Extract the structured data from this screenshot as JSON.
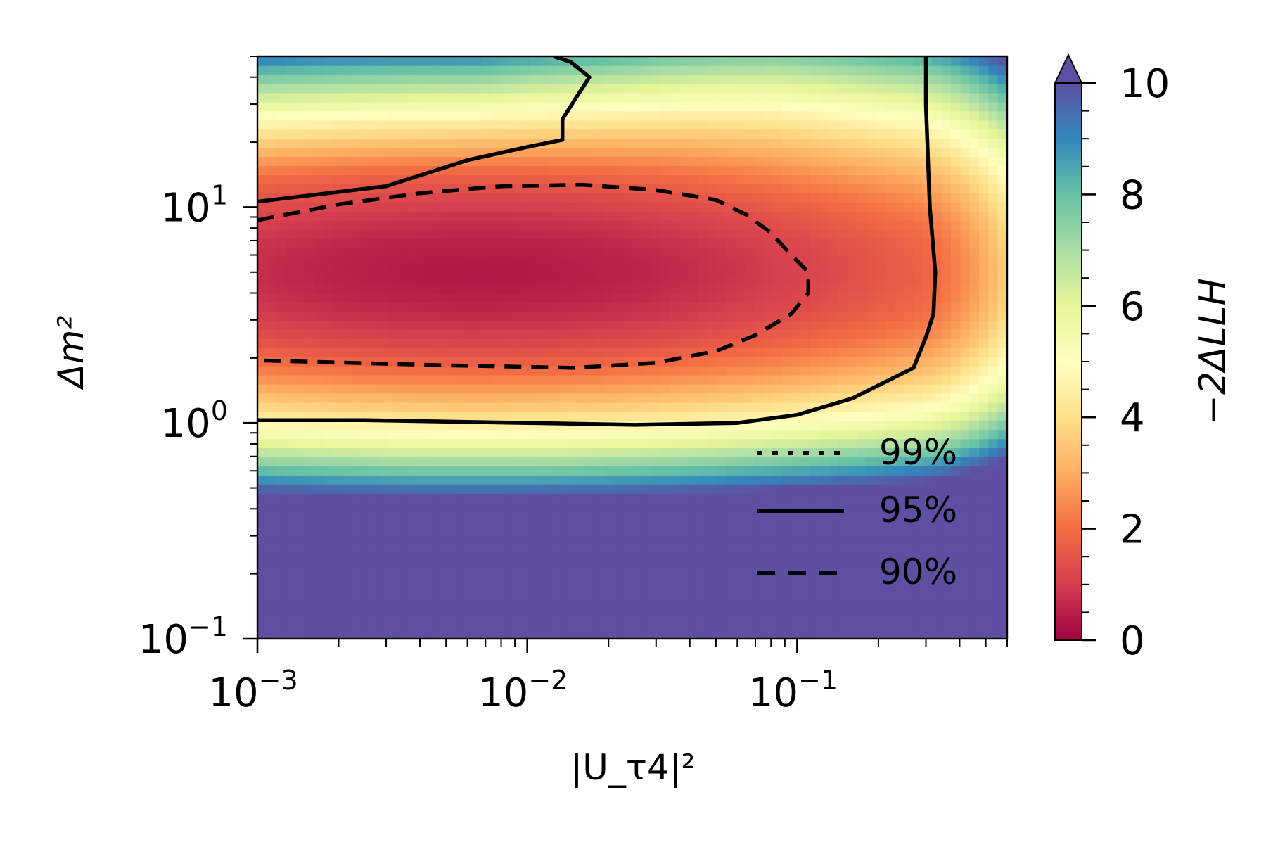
{
  "chart_data": {
    "type": "heatmap",
    "title": "",
    "xlabel": "|U_τ4|²",
    "ylabel": "Δm²",
    "x_scale": "log",
    "y_scale": "log",
    "xlim": [
      0.001,
      0.6
    ],
    "ylim": [
      0.1,
      50
    ],
    "x_ticks": [
      {
        "value": 0.001,
        "base": "10",
        "exp": "−3"
      },
      {
        "value": 0.01,
        "base": "10",
        "exp": "−2"
      },
      {
        "value": 0.1,
        "base": "10",
        "exp": "−1"
      }
    ],
    "y_ticks": [
      {
        "value": 0.1,
        "base": "10",
        "exp": "−1"
      },
      {
        "value": 1,
        "base": "10",
        "exp": "0"
      },
      {
        "value": 10,
        "base": "10",
        "exp": "1"
      }
    ],
    "colorbar": {
      "label": "−2ΔLLH",
      "min": 0,
      "max": 10,
      "extend": "max",
      "colormap": "Spectral",
      "ticks": [
        "0",
        "2",
        "4",
        "6",
        "8",
        "10"
      ]
    },
    "best_fit": {
      "x": 0.0065,
      "y": 5.0,
      "value": 0
    },
    "contours": [
      {
        "name": "90%",
        "style": "dashed",
        "points": [
          [
            0.001,
            8.7
          ],
          [
            0.002,
            10.3
          ],
          [
            0.004,
            11.6
          ],
          [
            0.008,
            12.5
          ],
          [
            0.016,
            12.7
          ],
          [
            0.03,
            12.0
          ],
          [
            0.05,
            10.8
          ],
          [
            0.065,
            9.2
          ],
          [
            0.08,
            7.6
          ],
          [
            0.095,
            6.0
          ],
          [
            0.11,
            5.0
          ],
          [
            0.11,
            4.0
          ],
          [
            0.095,
            3.2
          ],
          [
            0.07,
            2.55
          ],
          [
            0.05,
            2.15
          ],
          [
            0.03,
            1.9
          ],
          [
            0.015,
            1.8
          ],
          [
            0.005,
            1.85
          ],
          [
            0.001,
            1.95
          ]
        ]
      },
      {
        "name": "95%",
        "style": "solid",
        "points": [
          [
            0.001,
            1.03
          ],
          [
            0.0025,
            1.03
          ],
          [
            0.01,
            1.0
          ],
          [
            0.025,
            0.98
          ],
          [
            0.06,
            1.0
          ],
          [
            0.1,
            1.09
          ],
          [
            0.16,
            1.3
          ],
          [
            0.27,
            1.8
          ],
          [
            0.3,
            2.5
          ],
          [
            0.32,
            3.2
          ],
          [
            0.325,
            5.0
          ],
          [
            0.31,
            10.0
          ],
          [
            0.3,
            30.0
          ],
          [
            0.3,
            50.0
          ]
        ]
      },
      {
        "name": "95%",
        "style": "solid",
        "points": [
          [
            0.001,
            10.6
          ],
          [
            0.003,
            12.5
          ],
          [
            0.006,
            16.5
          ],
          [
            0.01,
            19.0
          ],
          [
            0.0135,
            20.5
          ],
          [
            0.0135,
            25.5
          ],
          [
            0.015,
            31.5
          ],
          [
            0.017,
            40.0
          ],
          [
            0.0145,
            47.0
          ],
          [
            0.0125,
            50.0
          ]
        ]
      }
    ],
    "legend": {
      "location": "lower-right",
      "entries": [
        {
          "label": "99%",
          "style": "dotted"
        },
        {
          "label": "95%",
          "style": "solid"
        },
        {
          "label": "90%",
          "style": "dashed"
        }
      ]
    }
  }
}
